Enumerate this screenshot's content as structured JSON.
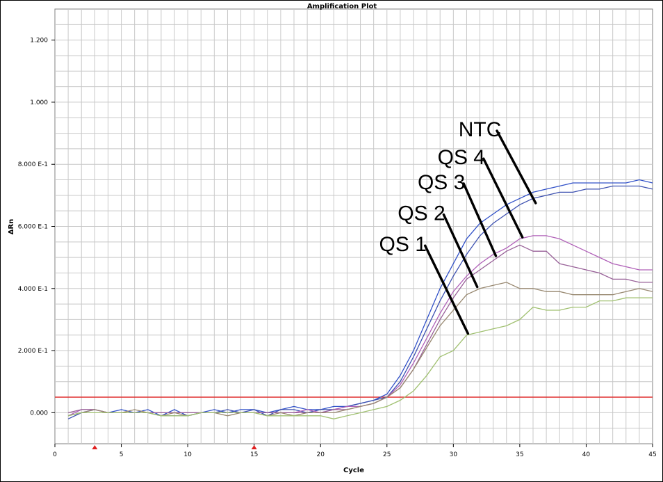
{
  "chart_data": {
    "type": "line",
    "title": "Amplification Plot",
    "xlabel": "Cycle",
    "ylabel": "ΔRn",
    "xlim": [
      0,
      45
    ],
    "ylim": [
      -0.1,
      1.3
    ],
    "x_ticks": [
      0,
      5,
      10,
      15,
      20,
      25,
      30,
      35,
      40,
      45
    ],
    "x_tick_labels": [
      "0",
      "5",
      "10",
      "15",
      "20",
      "25",
      "30",
      "35",
      "40",
      "45"
    ],
    "y_ticks": [
      0.0,
      0.2,
      0.4,
      0.6,
      0.8,
      1.0,
      1.2
    ],
    "y_tick_labels": [
      "0.000",
      "2.000 E-1",
      "4.000 E-1",
      "6.000 E-1",
      "8.000 E-1",
      "1.000",
      "1.200"
    ],
    "grid": true,
    "threshold": {
      "value": 0.05,
      "color": "#e03030"
    },
    "baseline_markers": [
      3,
      15
    ],
    "x": [
      1,
      2,
      3,
      4,
      5,
      6,
      7,
      8,
      9,
      10,
      11,
      12,
      13,
      14,
      15,
      16,
      17,
      18,
      19,
      20,
      21,
      22,
      23,
      24,
      25,
      26,
      27,
      28,
      29,
      30,
      31,
      32,
      33,
      34,
      35,
      36,
      37,
      38,
      39,
      40,
      41,
      42,
      43,
      44,
      45
    ],
    "series": [
      {
        "color": "#3050c8",
        "values": [
          -0.01,
          0.0,
          0.01,
          0.0,
          0.01,
          0.0,
          0.01,
          -0.01,
          0.01,
          -0.01,
          0.0,
          0.01,
          0.0,
          0.01,
          0.01,
          0.0,
          0.01,
          0.02,
          0.01,
          0.01,
          0.02,
          0.02,
          0.03,
          0.04,
          0.06,
          0.12,
          0.2,
          0.3,
          0.4,
          0.48,
          0.56,
          0.61,
          0.64,
          0.67,
          0.69,
          0.71,
          0.72,
          0.73,
          0.74,
          0.74,
          0.74,
          0.74,
          0.74,
          0.75,
          0.74
        ]
      },
      {
        "color": "#3c50b0",
        "values": [
          -0.02,
          0.0,
          0.01,
          0.0,
          0.0,
          0.0,
          0.0,
          -0.01,
          -0.01,
          -0.01,
          0.0,
          0.0,
          0.01,
          0.0,
          0.01,
          -0.01,
          0.01,
          0.01,
          0.0,
          0.01,
          0.01,
          0.02,
          0.03,
          0.04,
          0.05,
          0.1,
          0.18,
          0.27,
          0.36,
          0.44,
          0.51,
          0.57,
          0.61,
          0.64,
          0.67,
          0.69,
          0.7,
          0.71,
          0.71,
          0.72,
          0.72,
          0.73,
          0.73,
          0.73,
          0.72
        ]
      },
      {
        "color": "#b060b8",
        "values": [
          -0.01,
          0.01,
          0.01,
          0.0,
          0.0,
          0.0,
          0.0,
          0.0,
          0.0,
          0.0,
          0.0,
          0.0,
          0.0,
          0.0,
          0.0,
          0.0,
          0.0,
          0.0,
          0.01,
          0.0,
          0.01,
          0.02,
          0.02,
          0.03,
          0.05,
          0.09,
          0.16,
          0.24,
          0.32,
          0.39,
          0.44,
          0.48,
          0.51,
          0.53,
          0.56,
          0.57,
          0.57,
          0.56,
          0.54,
          0.52,
          0.5,
          0.48,
          0.47,
          0.46,
          0.46
        ]
      },
      {
        "color": "#986098",
        "values": [
          0.0,
          0.01,
          0.01,
          0.0,
          0.0,
          0.0,
          0.0,
          0.0,
          0.0,
          0.0,
          0.0,
          0.0,
          0.0,
          0.0,
          0.0,
          0.0,
          0.0,
          0.0,
          0.0,
          0.0,
          0.01,
          0.01,
          0.02,
          0.03,
          0.05,
          0.08,
          0.14,
          0.22,
          0.3,
          0.37,
          0.43,
          0.46,
          0.49,
          0.52,
          0.54,
          0.52,
          0.52,
          0.48,
          0.47,
          0.46,
          0.45,
          0.43,
          0.43,
          0.42,
          0.42
        ]
      },
      {
        "color": "#988870",
        "values": [
          -0.01,
          0.0,
          0.01,
          0.0,
          0.0,
          0.01,
          0.0,
          -0.01,
          0.0,
          -0.01,
          0.0,
          0.0,
          -0.01,
          0.0,
          0.0,
          -0.01,
          0.0,
          -0.01,
          0.0,
          0.0,
          0.0,
          0.01,
          0.02,
          0.03,
          0.05,
          0.08,
          0.14,
          0.21,
          0.28,
          0.33,
          0.38,
          0.4,
          0.41,
          0.42,
          0.4,
          0.4,
          0.39,
          0.39,
          0.38,
          0.38,
          0.38,
          0.38,
          0.39,
          0.4,
          0.39
        ]
      },
      {
        "color": "#a0c070",
        "values": [
          -0.01,
          0.0,
          0.0,
          0.0,
          0.0,
          0.0,
          0.0,
          -0.01,
          -0.01,
          -0.01,
          0.0,
          0.0,
          0.0,
          0.0,
          0.0,
          -0.01,
          -0.01,
          -0.01,
          -0.01,
          -0.01,
          -0.02,
          -0.01,
          0.0,
          0.01,
          0.02,
          0.04,
          0.07,
          0.12,
          0.18,
          0.2,
          0.25,
          0.26,
          0.27,
          0.28,
          0.3,
          0.34,
          0.33,
          0.33,
          0.34,
          0.34,
          0.36,
          0.36,
          0.37,
          0.37,
          0.37
        ]
      }
    ],
    "annotations": [
      {
        "text": "NTC",
        "label_x": 32.0,
        "label_y": 0.89,
        "point_x": 36.2,
        "point_y": 0.675
      },
      {
        "text": "QS 4",
        "label_x": 30.6,
        "label_y": 0.8,
        "point_x": 35.2,
        "point_y": 0.565
      },
      {
        "text": "QS 3",
        "label_x": 29.1,
        "label_y": 0.72,
        "point_x": 33.2,
        "point_y": 0.505
      },
      {
        "text": "QS 2",
        "label_x": 27.6,
        "label_y": 0.62,
        "point_x": 31.8,
        "point_y": 0.405
      },
      {
        "text": "QS 1",
        "label_x": 26.2,
        "label_y": 0.52,
        "point_x": 31.1,
        "point_y": 0.255
      }
    ]
  }
}
